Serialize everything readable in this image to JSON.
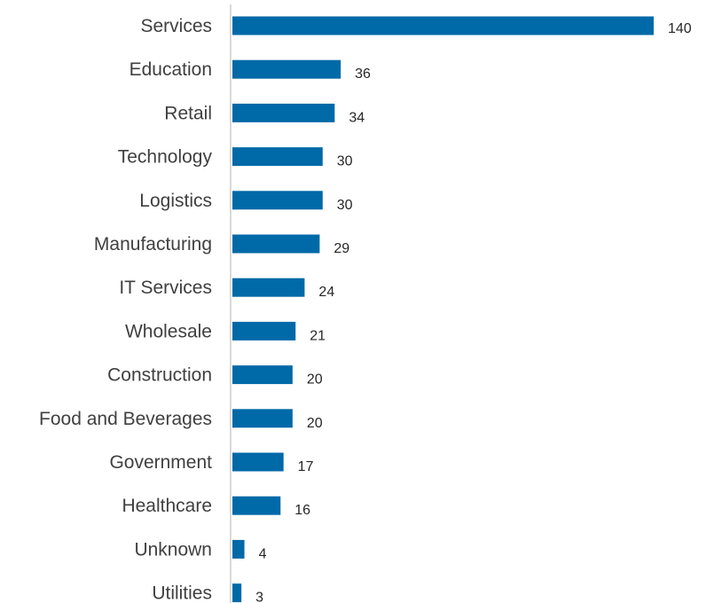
{
  "chart_data": {
    "type": "bar",
    "orientation": "horizontal",
    "title": "",
    "xlabel": "",
    "ylabel": "",
    "categories": [
      "Services",
      "Education",
      "Retail",
      "Technology",
      "Logistics",
      "Manufacturing",
      "IT Services",
      "Wholesale",
      "Construction",
      "Food and Beverages",
      "Government",
      "Healthcare",
      "Unknown",
      "Utilities"
    ],
    "values": [
      140,
      36,
      34,
      30,
      30,
      29,
      24,
      21,
      20,
      20,
      17,
      16,
      4,
      3
    ],
    "xlim": [
      0,
      140
    ],
    "grid": false,
    "legend": "none",
    "bar_color": "#0069A8",
    "axis_color": "#D9D9D9",
    "category_label_color": "#404040",
    "value_label_color": "#262626"
  }
}
